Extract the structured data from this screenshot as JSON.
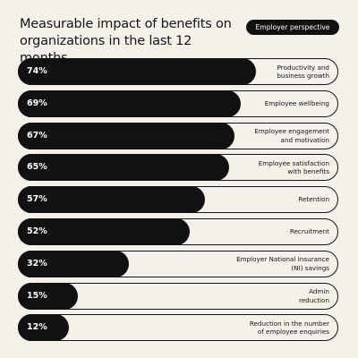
{
  "title": "Measurable impact of benefits on organizations in the last 12 months",
  "badge": "Employer perspective",
  "colors": {
    "background": "#f5f1ea",
    "bar": "#111111",
    "outline": "#141414",
    "badge_bg": "#111111",
    "badge_text": "#ffffff"
  },
  "chart_data": {
    "type": "bar",
    "orientation": "horizontal",
    "title": "Measurable impact of benefits on organizations in the last 12 months",
    "xlim": [
      0,
      100
    ],
    "grid": false,
    "categories": [
      [
        "Productivity and",
        "business growth"
      ],
      [
        "Employee wellbeing"
      ],
      [
        "Employee engagement",
        "and motivation"
      ],
      [
        "Employee satisfaction",
        "with benefits"
      ],
      [
        "Retention"
      ],
      [
        "Recruitment"
      ],
      [
        "Employer National Insurance",
        "(NI) savings"
      ],
      [
        "Admin",
        "reduction"
      ],
      [
        "Reduction in the number",
        "of employee enquiries"
      ]
    ],
    "values": [
      74,
      69,
      67,
      65,
      57,
      52,
      32,
      15,
      12
    ],
    "value_labels": [
      "74%",
      "69%",
      "67%",
      "65%",
      "57%",
      "52%",
      "32%",
      "15%",
      "12%"
    ]
  }
}
